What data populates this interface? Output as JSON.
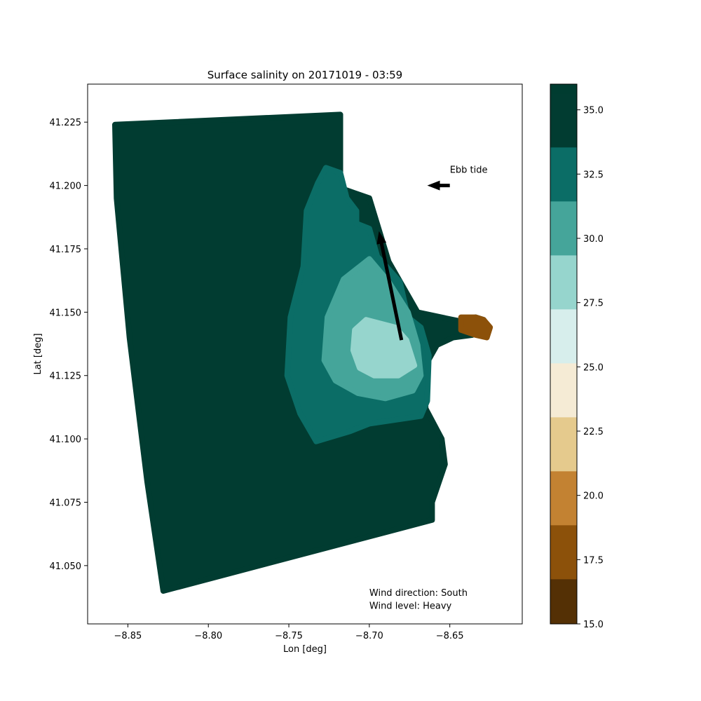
{
  "chart_data": {
    "type": "heatmap",
    "title": "Surface salinity on 20171019 - 03:59",
    "xlabel": "Lon [deg]",
    "ylabel": "Lat [deg]",
    "xlim": [
      -8.875,
      -8.605
    ],
    "ylim": [
      41.027,
      41.24
    ],
    "x_ticks": [
      -8.85,
      -8.8,
      -8.75,
      -8.7,
      -8.65
    ],
    "x_tick_labels": [
      "−8.85",
      "−8.80",
      "−8.75",
      "−8.70",
      "−8.65"
    ],
    "y_ticks": [
      41.05,
      41.075,
      41.1,
      41.125,
      41.15,
      41.175,
      41.2,
      41.225
    ],
    "y_tick_labels": [
      "41.050",
      "41.075",
      "41.100",
      "41.125",
      "41.150",
      "41.175",
      "41.200",
      "41.225"
    ],
    "grid": false,
    "colorbar": {
      "range": [
        15.0,
        36.0
      ],
      "levels": [
        15.0,
        16.75,
        18.85,
        20.95,
        23.05,
        25.15,
        27.25,
        29.35,
        31.45,
        33.55,
        35.65,
        36.0
      ],
      "colors": [
        "#543005",
        "#8c510a",
        "#c38232",
        "#e5ca8d",
        "#f5ebd5",
        "#d7eeec",
        "#96d5cd",
        "#45a59a",
        "#0b6d66",
        "#013c31",
        "#003c30"
      ],
      "ticks": [
        15.0,
        17.5,
        20.0,
        22.5,
        25.0,
        27.5,
        30.0,
        32.5,
        35.0
      ],
      "tick_labels": [
        "15.0",
        "17.5",
        "20.0",
        "22.5",
        "25.0",
        "27.5",
        "30.0",
        "32.5",
        "35.0"
      ]
    },
    "regions": [
      {
        "salinity": 35,
        "polygon": [
          [
            -8.858,
            41.224
          ],
          [
            -8.718,
            41.228
          ],
          [
            -8.718,
            41.199
          ],
          [
            -8.7,
            41.195
          ],
          [
            -8.688,
            41.17
          ],
          [
            -8.67,
            41.15
          ],
          [
            -8.648,
            41.147
          ],
          [
            -8.64,
            41.146
          ],
          [
            -8.634,
            41.148
          ],
          [
            -8.629,
            41.147
          ],
          [
            -8.629,
            41.143
          ],
          [
            -8.636,
            41.141
          ],
          [
            -8.648,
            41.14
          ],
          [
            -8.658,
            41.137
          ],
          [
            -8.666,
            41.128
          ],
          [
            -8.665,
            41.112
          ],
          [
            -8.655,
            41.1
          ],
          [
            -8.653,
            41.09
          ],
          [
            -8.661,
            41.075
          ],
          [
            -8.661,
            41.068
          ],
          [
            -8.828,
            41.04
          ],
          [
            -8.838,
            41.083
          ],
          [
            -8.849,
            41.14
          ],
          [
            -8.857,
            41.195
          ]
        ]
      },
      {
        "salinity": 32.5,
        "polygon": [
          [
            -8.732,
            41.201
          ],
          [
            -8.727,
            41.207
          ],
          [
            -8.718,
            41.205
          ],
          [
            -8.714,
            41.195
          ],
          [
            -8.708,
            41.19
          ],
          [
            -8.708,
            41.185
          ],
          [
            -8.7,
            41.183
          ],
          [
            -8.695,
            41.172
          ],
          [
            -8.681,
            41.162
          ],
          [
            -8.676,
            41.148
          ],
          [
            -8.668,
            41.144
          ],
          [
            -8.663,
            41.133
          ],
          [
            -8.664,
            41.115
          ],
          [
            -8.668,
            41.109
          ],
          [
            -8.7,
            41.106
          ],
          [
            -8.712,
            41.103
          ],
          [
            -8.733,
            41.099
          ],
          [
            -8.743,
            41.11
          ],
          [
            -8.751,
            41.125
          ],
          [
            -8.749,
            41.148
          ],
          [
            -8.741,
            41.168
          ],
          [
            -8.739,
            41.19
          ]
        ]
      },
      {
        "salinity": 30,
        "polygon": [
          [
            -8.7,
            41.171
          ],
          [
            -8.688,
            41.162
          ],
          [
            -8.676,
            41.15
          ],
          [
            -8.67,
            41.137
          ],
          [
            -8.668,
            41.125
          ],
          [
            -8.673,
            41.119
          ],
          [
            -8.69,
            41.116
          ],
          [
            -8.707,
            41.118
          ],
          [
            -8.721,
            41.123
          ],
          [
            -8.728,
            41.131
          ],
          [
            -8.726,
            41.148
          ],
          [
            -8.716,
            41.163
          ]
        ]
      },
      {
        "salinity": 27.5,
        "polygon": [
          [
            -8.702,
            41.147
          ],
          [
            -8.684,
            41.144
          ],
          [
            -8.677,
            41.139
          ],
          [
            -8.672,
            41.129
          ],
          [
            -8.682,
            41.125
          ],
          [
            -8.697,
            41.125
          ],
          [
            -8.706,
            41.128
          ],
          [
            -8.71,
            41.135
          ],
          [
            -8.709,
            41.143
          ]
        ]
      },
      {
        "salinity": 17,
        "polygon": [
          [
            -8.643,
            41.148
          ],
          [
            -8.634,
            41.148
          ],
          [
            -8.629,
            41.147
          ],
          [
            -8.625,
            41.144
          ],
          [
            -8.627,
            41.14
          ],
          [
            -8.634,
            41.141
          ],
          [
            -8.643,
            41.143
          ]
        ]
      }
    ],
    "annotations": [
      {
        "text": "Ebb tide",
        "x": -8.65,
        "y": 41.205
      },
      {
        "text": "Wind direction: South",
        "x": -8.7,
        "y": 41.038
      },
      {
        "text": "Wind level: Heavy",
        "x": -8.7,
        "y": 41.033
      }
    ],
    "arrows": [
      {
        "name": "ebb-tide-arrow",
        "from": [
          -8.65,
          41.2
        ],
        "to": [
          -8.664,
          41.2
        ]
      },
      {
        "name": "wind-arrow",
        "from": [
          -8.68,
          41.139
        ],
        "to": [
          -8.694,
          41.182
        ]
      }
    ]
  }
}
